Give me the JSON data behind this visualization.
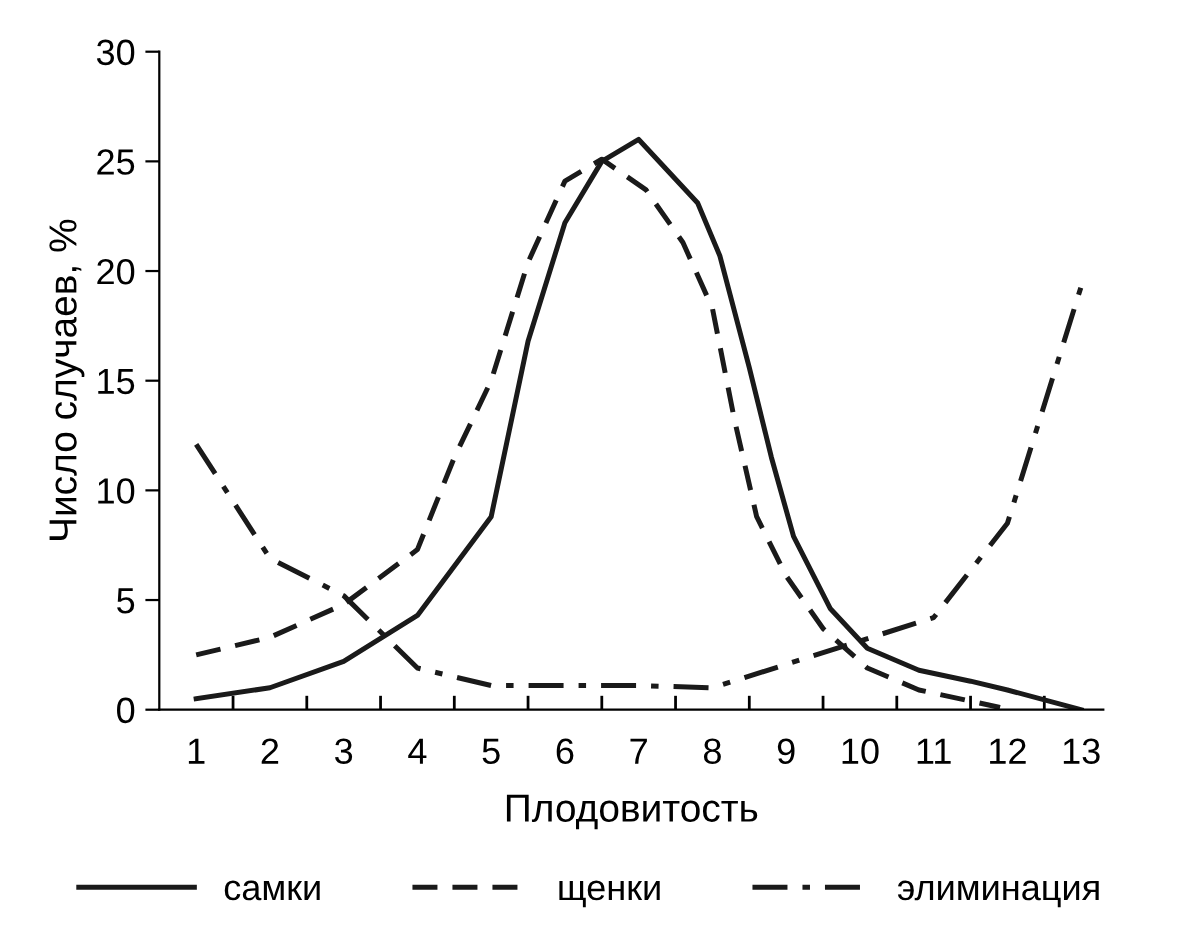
{
  "chart_data": {
    "type": "line",
    "xlabel": "Плодовитость",
    "ylabel": "Число случаев, %",
    "xlim": [
      0.5,
      13.3
    ],
    "ylim": [
      0,
      30
    ],
    "xticks": [
      {
        "value": 1,
        "label": "1"
      },
      {
        "value": 1.5,
        "label": null
      },
      {
        "value": 2,
        "label": "2"
      },
      {
        "value": 2.5,
        "label": null
      },
      {
        "value": 3,
        "label": "3"
      },
      {
        "value": 3.5,
        "label": null
      },
      {
        "value": 4,
        "label": "4"
      },
      {
        "value": 4.5,
        "label": null
      },
      {
        "value": 5,
        "label": "5"
      },
      {
        "value": 5.5,
        "label": null
      },
      {
        "value": 6,
        "label": "6"
      },
      {
        "value": 6.5,
        "label": null
      },
      {
        "value": 7,
        "label": "7"
      },
      {
        "value": 7.5,
        "label": null
      },
      {
        "value": 8,
        "label": "8"
      },
      {
        "value": 8.5,
        "label": null
      },
      {
        "value": 9,
        "label": "9"
      },
      {
        "value": 9.5,
        "label": null
      },
      {
        "value": 10,
        "label": "10"
      },
      {
        "value": 10.5,
        "label": null
      },
      {
        "value": 11,
        "label": "11"
      },
      {
        "value": 11.5,
        "label": null
      },
      {
        "value": 12,
        "label": "12"
      },
      {
        "value": 12.5,
        "label": null
      },
      {
        "value": 13,
        "label": "13"
      }
    ],
    "yticks": [
      0,
      5,
      10,
      15,
      20,
      25,
      30
    ],
    "grid": false,
    "legend": "bottom",
    "marker": "none",
    "series": [
      {
        "name": "самки",
        "color": "#1a1a1a",
        "line_style": "solid",
        "x": [
          1,
          2,
          3,
          4,
          5,
          5.5,
          6,
          6.5,
          7,
          7.8,
          8.1,
          8.5,
          8.8,
          9.1,
          9.6,
          10.1,
          10.8,
          11.5,
          12,
          13
        ],
        "values": [
          0.5,
          1.0,
          2.2,
          4.3,
          8.8,
          16.8,
          22.2,
          25,
          26,
          23.1,
          20.7,
          15.6,
          11.5,
          7.9,
          4.6,
          2.8,
          1.8,
          1.3,
          0.9,
          0
        ]
      },
      {
        "name": "щенки",
        "color": "#1a1a1a",
        "line_style": "dashed",
        "x": [
          1,
          2,
          3,
          4,
          4.5,
          5,
          5.5,
          6,
          6.5,
          7.1,
          7.6,
          8,
          8.3,
          8.6,
          9,
          9.5,
          10.1,
          10.8,
          11.9
        ],
        "values": [
          2.5,
          3.3,
          4.8,
          7.3,
          11.5,
          15,
          20.4,
          24.1,
          25.1,
          23.7,
          21.3,
          18.3,
          13.2,
          8.8,
          6.1,
          3.7,
          1.9,
          0.9,
          0.1
        ]
      },
      {
        "name": "элиминация",
        "color": "#1a1a1a",
        "line_style": "dashdot",
        "x": [
          1,
          2,
          3,
          4,
          5,
          6,
          7,
          8,
          11,
          12,
          13
        ],
        "values": [
          12.1,
          6.9,
          5.2,
          1.9,
          1.1,
          1.1,
          1.1,
          1.0,
          4.2,
          8.5,
          19.3
        ]
      }
    ]
  }
}
